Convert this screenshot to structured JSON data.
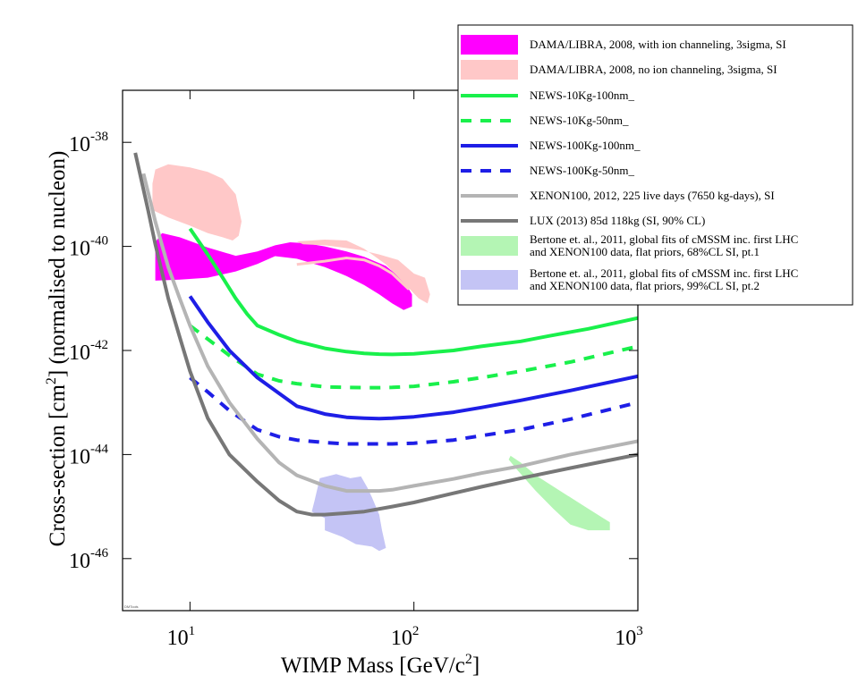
{
  "chart_data": {
    "type": "line",
    "title": "",
    "xlabel": "WIMP Mass [GeV/c²]",
    "xlabel_main": "WIMP Mass [GeV/c",
    "xlabel_sup": "2",
    "xlabel_end": "]",
    "ylabel": "Cross-section [cm²] (normalised to nucleon)",
    "ylabel_main": "Cross-section [cm",
    "ylabel_sup": "2",
    "ylabel_end": "] (normalised to nucleon)",
    "xscale": "log",
    "yscale": "log",
    "xlim": [
      5,
      1000
    ],
    "ylim": [
      1e-47,
      1e-37
    ],
    "grid": false,
    "legend_position": "top-right",
    "xticks": [
      {
        "value": 10,
        "base": "10",
        "exp": "1"
      },
      {
        "value": 100,
        "base": "10",
        "exp": "2"
      },
      {
        "value": 1000,
        "base": "10",
        "exp": "3"
      }
    ],
    "yticks": [
      {
        "value": 1e-38,
        "base": "10",
        "exp": "-38"
      },
      {
        "value": 1e-40,
        "base": "10",
        "exp": "-40"
      },
      {
        "value": 1e-42,
        "base": "10",
        "exp": "-42"
      },
      {
        "value": 1e-44,
        "base": "10",
        "exp": "-44"
      },
      {
        "value": 1e-46,
        "base": "10",
        "exp": "-46"
      }
    ],
    "watermark": "DMTools",
    "series": [
      {
        "name": "DAMA/LIBRA, 2008, with ion channeling, 3sigma, SI",
        "kind": "region",
        "color": "#ff00ff",
        "opacity": 1.0,
        "polygon": [
          [
            7,
            2.2e-41
          ],
          [
            9,
            2.3e-41
          ],
          [
            12,
            2.5e-41
          ],
          [
            16,
            3.3e-41
          ],
          [
            20,
            4.6e-41
          ],
          [
            24,
            6.5e-41
          ],
          [
            30,
            5.8e-41
          ],
          [
            40,
            4e-41
          ],
          [
            50,
            2.7e-41
          ],
          [
            60,
            1.8e-41
          ],
          [
            70,
            1.2e-41
          ],
          [
            80,
            8e-42
          ],
          [
            90,
            6e-42
          ],
          [
            98,
            7e-42
          ],
          [
            98,
            1.2e-41
          ],
          [
            90,
            2.2e-41
          ],
          [
            75,
            4.2e-41
          ],
          [
            60,
            6.3e-41
          ],
          [
            50,
            8e-41
          ],
          [
            40,
            1e-40
          ],
          [
            33,
            1.15e-40
          ],
          [
            28,
            1.2e-40
          ],
          [
            24,
            1.05e-40
          ],
          [
            20,
            8e-41
          ],
          [
            16,
            6.6e-41
          ],
          [
            12,
            9.5e-41
          ],
          [
            9,
            1.5e-40
          ],
          [
            7.5,
            1.8e-40
          ],
          [
            7,
            1.2e-40
          ]
        ]
      },
      {
        "name": "DAMA/LIBRA, 2008, no ion channeling, 3sigma, SI",
        "kind": "region",
        "color": "#ffc8c8",
        "opacity": 1.0,
        "polygon": [
          [
            6.8,
            5e-40
          ],
          [
            8,
            3.6e-40
          ],
          [
            10,
            2.5e-40
          ],
          [
            12,
            1.8e-40
          ],
          [
            14,
            1.5e-40
          ],
          [
            15.5,
            1.3e-40
          ],
          [
            16.5,
            1.6e-40
          ],
          [
            17,
            3e-40
          ],
          [
            16,
            1e-39
          ],
          [
            14,
            2e-39
          ],
          [
            12,
            2.7e-39
          ],
          [
            10,
            3.3e-39
          ],
          [
            8,
            3.8e-39
          ],
          [
            7,
            3e-39
          ],
          [
            6.8,
            1.6e-39
          ]
        ]
      },
      {
        "name": "DAMA/LIBRA, 2008, no ion channeling, 3sigma, SI (heavy)",
        "kind": "region",
        "color": "#ffc8c8",
        "opacity": 1.0,
        "polygon": [
          [
            30,
            1.25e-40
          ],
          [
            40,
            1.35e-40
          ],
          [
            50,
            1.3e-40
          ],
          [
            60,
            9e-41
          ],
          [
            75,
            4.5e-41
          ],
          [
            90,
            2e-41
          ],
          [
            105,
            1e-41
          ],
          [
            115,
            8e-42
          ],
          [
            118,
            1.2e-41
          ],
          [
            112,
            2.5e-41
          ],
          [
            100,
            3e-41
          ],
          [
            85,
            5.5e-41
          ],
          [
            70,
            7e-41
          ],
          [
            58,
            8.5e-41
          ],
          [
            48,
            9.5e-41
          ],
          [
            40,
            1.05e-40
          ],
          [
            32,
            1.1e-40
          ]
        ]
      },
      {
        "name": "Bertone et. al., 2011, global fits of cMSSM inc. first LHC and XENON100 data, flat priors, 68%CL SI, pt.1",
        "kind": "region",
        "color": "#b4f5b4",
        "opacity": 1.0,
        "polygon": [
          [
            270,
            9.5e-45
          ],
          [
            300,
            7e-45
          ],
          [
            350,
            4e-45
          ],
          [
            450,
            2e-45
          ],
          [
            580,
            1e-45
          ],
          [
            700,
            6e-46
          ],
          [
            750,
            5e-46
          ],
          [
            750,
            3.5e-46
          ],
          [
            600,
            3.5e-46
          ],
          [
            500,
            4.5e-46
          ],
          [
            420,
            9e-46
          ],
          [
            350,
            2e-45
          ],
          [
            290,
            5e-45
          ],
          [
            265,
            8e-45
          ]
        ]
      },
      {
        "name": "Bertone et. al., 2011, global fits of cMSSM inc. first LHC and XENON100 data, flat priors, 99%CL SI, pt.2",
        "kind": "region",
        "color": "#c4c4f5",
        "opacity": 1.0,
        "polygon": [
          [
            38,
            3.5e-45
          ],
          [
            45,
            4.2e-45
          ],
          [
            52,
            3.5e-45
          ],
          [
            58,
            3.8e-45
          ],
          [
            62,
            2.3e-45
          ],
          [
            65,
            1.5e-45
          ],
          [
            70,
            7e-46
          ],
          [
            72,
            3.5e-46
          ],
          [
            75,
            1.6e-46
          ],
          [
            70,
            1.4e-46
          ],
          [
            65,
            1.7e-46
          ],
          [
            55,
            1.9e-46
          ],
          [
            48,
            2.6e-46
          ],
          [
            40,
            3.5e-46
          ],
          [
            40,
            6e-46
          ],
          [
            35,
            8e-46
          ],
          [
            36,
            1.3e-45
          ]
        ]
      },
      {
        "name": "NEWS-10Kg-100nm_",
        "kind": "line",
        "color": "#19f04b",
        "width": 4,
        "dash": "",
        "x": [
          10,
          12,
          14,
          16,
          18,
          20,
          25,
          30,
          40,
          50,
          60,
          70,
          80,
          100,
          150,
          200,
          300,
          400,
          600,
          1000
        ],
        "y": [
          2.2e-40,
          7e-41,
          2.5e-41,
          1e-41,
          5e-42,
          3e-42,
          2e-42,
          1.5e-42,
          1.1e-42,
          9.5e-43,
          8.8e-43,
          8.5e-43,
          8.4e-43,
          8.6e-43,
          1e-42,
          1.2e-42,
          1.5e-42,
          1.9e-42,
          2.6e-42,
          4.2e-42
        ]
      },
      {
        "name": "NEWS-10Kg-50nm_",
        "kind": "line",
        "color": "#19f04b",
        "width": 4,
        "dash": "12,10",
        "x": [
          10,
          15,
          20,
          25,
          30,
          40,
          50,
          60,
          70,
          80,
          100,
          150,
          200,
          300,
          500,
          1000
        ],
        "y": [
          3e-42,
          8e-43,
          3.5e-43,
          2.6e-43,
          2.3e-43,
          2e-43,
          1.95e-43,
          1.93e-43,
          1.93e-43,
          1.95e-43,
          2.05e-43,
          2.5e-43,
          3e-43,
          4e-43,
          6e-43,
          1.2e-42
        ]
      },
      {
        "name": "NEWS-100Kg-100nm_",
        "kind": "line",
        "color": "#1e1ee6",
        "width": 4,
        "dash": "",
        "x": [
          10,
          12,
          15,
          20,
          25,
          30,
          40,
          50,
          60,
          70,
          80,
          100,
          150,
          200,
          300,
          500,
          1000
        ],
        "y": [
          1.1e-41,
          3.5e-42,
          1e-42,
          3e-43,
          1.5e-43,
          8.5e-44,
          6e-44,
          5.2e-44,
          5e-44,
          4.9e-44,
          5e-44,
          5.3e-44,
          6.5e-44,
          8e-44,
          1.1e-43,
          1.7e-43,
          3.2e-43
        ]
      },
      {
        "name": "NEWS-100Kg-50nm_",
        "kind": "line",
        "color": "#1e1ee6",
        "width": 4,
        "dash": "12,10",
        "x": [
          10,
          12,
          15,
          20,
          25,
          30,
          40,
          50,
          60,
          80,
          100,
          150,
          200,
          300,
          500,
          1000
        ],
        "y": [
          3e-43,
          1.6e-43,
          7e-44,
          3e-44,
          2.2e-44,
          1.9e-44,
          1.7e-44,
          1.6e-44,
          1.6e-44,
          1.6e-44,
          1.65e-44,
          1.9e-44,
          2.3e-44,
          3e-44,
          4.8e-44,
          1e-43
        ]
      },
      {
        "name": "XENON100, 2012, 225 live days (7650 kg-days), SI",
        "kind": "line",
        "color": "#b4b4b4",
        "width": 4,
        "dash": "",
        "x": [
          6.2,
          7,
          8,
          9,
          10,
          12,
          15,
          20,
          25,
          30,
          40,
          50,
          60,
          70,
          80,
          100,
          150,
          200,
          300,
          500,
          1000
        ],
        "y": [
          2.5e-39,
          3e-40,
          4e-41,
          1e-41,
          3e-42,
          5e-43,
          1e-43,
          2e-44,
          7e-45,
          4e-45,
          2.5e-45,
          2e-45,
          2e-45,
          2e-45,
          2.1e-45,
          2.5e-45,
          3.4e-45,
          4.4e-45,
          6e-45,
          1e-44,
          1.8e-44
        ]
      },
      {
        "name": "LUX (2013) 85d 118kg (SI, 90% CL)",
        "kind": "line",
        "color": "#777777",
        "width": 4,
        "dash": "",
        "x": [
          5.7,
          6.5,
          7,
          8,
          9,
          10,
          12,
          15,
          20,
          25,
          30,
          35,
          40,
          50,
          60,
          80,
          100,
          150,
          200,
          300,
          500,
          1000
        ],
        "y": [
          6.3e-39,
          5e-40,
          1.1e-40,
          1e-41,
          1.8e-42,
          4e-43,
          5e-44,
          1e-44,
          3e-45,
          1.3e-45,
          8e-46,
          7e-46,
          7e-46,
          7.5e-46,
          8e-46,
          1e-45,
          1.2e-45,
          1.8e-45,
          2.4e-45,
          3.5e-45,
          5.5e-45,
          1e-44
        ]
      },
      {
        "name": "DAMA/LIBRA, 2008, with ion channeling, 3sigma, SI (centre)",
        "kind": "line",
        "color": "#ffc8c8",
        "width": 3,
        "dash": "",
        "x": [
          30,
          40,
          50,
          60,
          70,
          80,
          95
        ],
        "y": [
          4.5e-41,
          5.2e-41,
          6e-41,
          5.5e-41,
          4.2e-41,
          3e-41,
          1.5e-41
        ]
      }
    ],
    "legend": [
      {
        "kind": "region",
        "color": "#ff00ff",
        "label": [
          "DAMA/LIBRA, 2008, with ion channeling, 3sigma, SI"
        ]
      },
      {
        "kind": "region",
        "color": "#ffc8c8",
        "label": [
          "DAMA/LIBRA, 2008, no ion channeling, 3sigma, SI"
        ]
      },
      {
        "kind": "line",
        "color": "#19f04b",
        "dash": "",
        "label": [
          "NEWS-10Kg-100nm_"
        ]
      },
      {
        "kind": "line",
        "color": "#19f04b",
        "dash": "12,10",
        "label": [
          "NEWS-10Kg-50nm_"
        ]
      },
      {
        "kind": "line",
        "color": "#1e1ee6",
        "dash": "",
        "label": [
          "NEWS-100Kg-100nm_"
        ]
      },
      {
        "kind": "line",
        "color": "#1e1ee6",
        "dash": "12,10",
        "label": [
          "NEWS-100Kg-50nm_"
        ]
      },
      {
        "kind": "line",
        "color": "#b4b4b4",
        "dash": "",
        "label": [
          "XENON100, 2012, 225 live days (7650 kg-days), SI"
        ]
      },
      {
        "kind": "line",
        "color": "#777777",
        "dash": "",
        "label": [
          "LUX (2013) 85d 118kg (SI, 90% CL)"
        ]
      },
      {
        "kind": "region",
        "color": "#b4f5b4",
        "label": [
          "Bertone et. al., 2011, global fits of cMSSM inc. first LHC",
          "and XENON100 data, flat priors, 68%CL SI, pt.1"
        ]
      },
      {
        "kind": "region",
        "color": "#c4c4f5",
        "label": [
          "Bertone et. al., 2011, global fits of cMSSM inc. first LHC",
          "and XENON100 data, flat priors, 99%CL SI, pt.2"
        ]
      }
    ]
  }
}
